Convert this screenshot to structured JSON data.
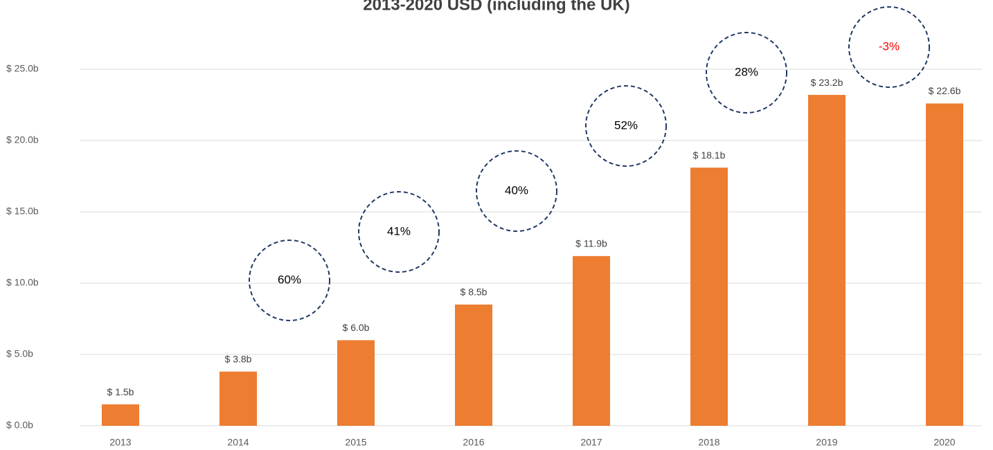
{
  "chart_data": {
    "type": "bar",
    "title": "2013-2020 USD (including the UK)",
    "categories": [
      "2013",
      "2014",
      "2015",
      "2016",
      "2017",
      "2018",
      "2019",
      "2020"
    ],
    "values": [
      1.5,
      3.8,
      6.0,
      8.5,
      11.9,
      18.1,
      23.2,
      22.6
    ],
    "value_labels": [
      "$ 1.5b",
      "$ 3.8b",
      "$ 6.0b",
      "$ 8.5b",
      "$ 11.9b",
      "$ 18.1b",
      "$ 23.2b",
      "$ 22.6b"
    ],
    "color": "#ed7d31",
    "ylim": [
      0,
      25
    ],
    "yticks": [
      {
        "value": 0,
        "label": "$ 0.0b"
      },
      {
        "value": 5,
        "label": "$ 5.0b"
      },
      {
        "value": 10,
        "label": "$ 10.0b"
      },
      {
        "value": 15,
        "label": "$ 15.0b"
      },
      {
        "value": 20,
        "label": "$ 20.0b"
      },
      {
        "value": 25,
        "label": "$ 25.0b"
      }
    ],
    "grid": true,
    "annotations": [
      {
        "text": "60%",
        "color": "#000000"
      },
      {
        "text": "41%",
        "color": "#000000"
      },
      {
        "text": "40%",
        "color": "#000000"
      },
      {
        "text": "52%",
        "color": "#000000"
      },
      {
        "text": "28%",
        "color": "#000000"
      },
      {
        "text": "-3%",
        "color": "#ff0000"
      }
    ]
  }
}
